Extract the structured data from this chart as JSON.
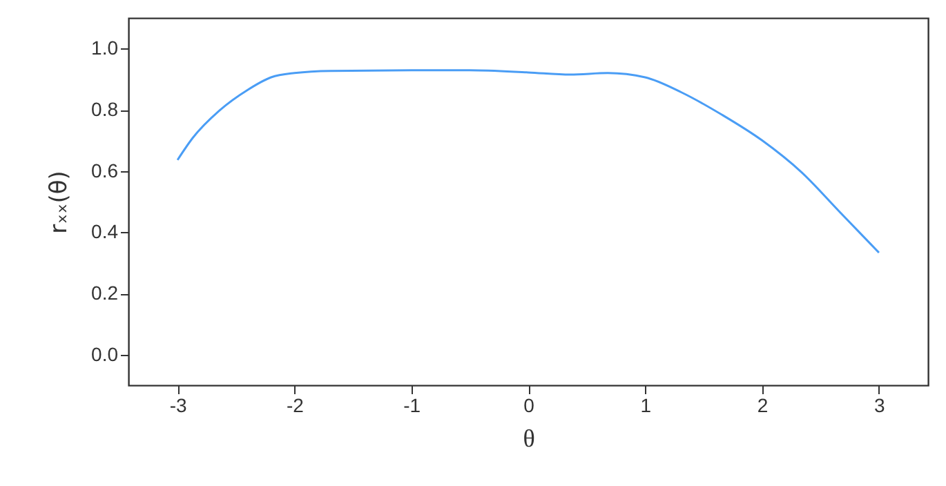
{
  "chart_data": {
    "type": "line",
    "xlabel": "θ",
    "ylabel": "rₓₓ(θ)",
    "x": [
      -3,
      -2.87,
      -2.64,
      -2.4,
      -2.2,
      -2,
      -1.69,
      -1,
      -0.5,
      0,
      0.36,
      0.68,
      1,
      1.31,
      1.66,
      2,
      2.34,
      2.66,
      3
    ],
    "series": [
      {
        "color": "#4a9df5",
        "values": [
          0.636,
          0.708,
          0.798,
          0.865,
          0.906,
          0.92,
          0.927,
          0.929,
          0.929,
          0.922,
          0.915,
          0.92,
          0.906,
          0.857,
          0.783,
          0.7,
          0.595,
          0.468,
          0.333
        ]
      }
    ],
    "xlim": [
      -3.42,
      3.42
    ],
    "ylim": [
      -0.1,
      1.1
    ],
    "xticks": [
      -3,
      -2,
      -1,
      0,
      1,
      2,
      3
    ],
    "yticks": [
      {
        "value": 0,
        "label": "0.0"
      },
      0.2,
      0.4,
      0.6,
      0.8,
      {
        "value": 1,
        "label": "1.0"
      }
    ],
    "grid": false,
    "marker": "none",
    "line_style": "solid"
  }
}
